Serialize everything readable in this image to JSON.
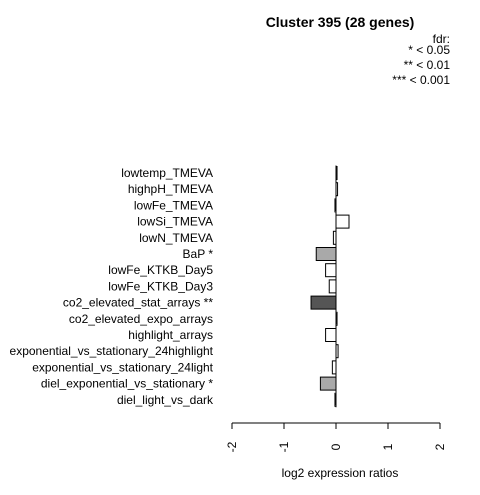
{
  "chart_data": {
    "type": "bar",
    "orientation": "horizontal",
    "title": "Cluster 395 (28 genes)",
    "xlabel": "log2 expression ratios",
    "ylabel": "",
    "xlim": [
      -2,
      2
    ],
    "ticks": [
      "-2",
      "-1",
      "0",
      "1",
      "2"
    ],
    "legend": {
      "position": "top-right",
      "lines": [
        "fdr:",
        "* < 0.05",
        "** < 0.01",
        "*** < 0.001"
      ]
    },
    "categories": [
      "lowtemp_TMEVA",
      "highpH_TMEVA",
      "lowFe_TMEVA",
      "lowSi_TMEVA",
      "lowN_TMEVA",
      "BaP *",
      "lowFe_KTKB_Day5",
      "lowFe_KTKB_Day3",
      "co2_elevated_stat_arrays **",
      "co2_elevated_expo_arrays",
      "highlight_arrays",
      "exponential_vs_stationary_24highlight",
      "exponential_vs_stationary_24light",
      "diel_exponential_vs_stationary *",
      "diel_light_vs_dark"
    ],
    "values": [
      0.02,
      0.03,
      -0.02,
      0.25,
      -0.05,
      -0.38,
      -0.2,
      -0.13,
      -0.48,
      0.02,
      -0.2,
      0.04,
      -0.07,
      -0.3,
      -0.02
    ],
    "significance": [
      "",
      "",
      "",
      "",
      "",
      "*",
      "",
      "",
      "**",
      "",
      "",
      "",
      "",
      "*",
      ""
    ],
    "colors": {
      "none": "#ffffff",
      "*": "#a9a9a9",
      "**": "#555555",
      "***": "#222222",
      "stroke": "#000000"
    }
  }
}
